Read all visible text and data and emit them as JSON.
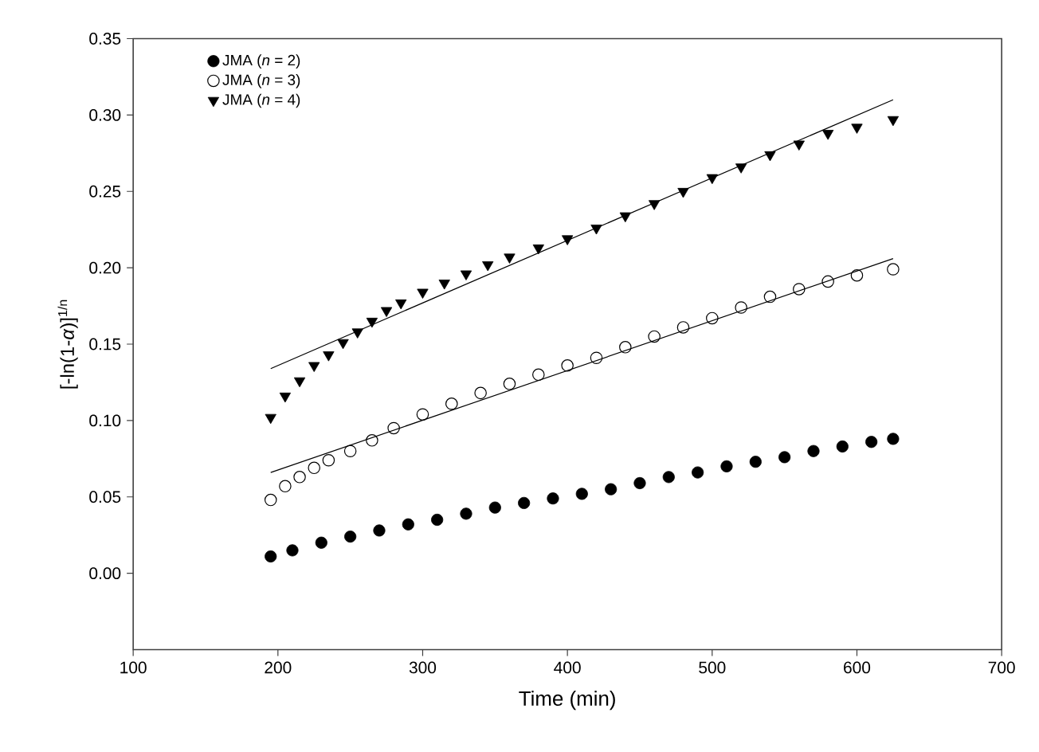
{
  "chart_data": {
    "type": "scatter",
    "xlabel": "Time (min)",
    "ylabel": "[-ln(1-*α*)]$^{1/n}$",
    "xlim": [
      100,
      700
    ],
    "xticks": [
      100,
      200,
      300,
      400,
      500,
      600,
      700
    ],
    "ylim": [
      -0.05,
      0.35
    ],
    "yticks": [
      {
        "value": 0,
        "label": "0.00"
      },
      {
        "value": 0.05,
        "label": "0.05"
      },
      {
        "value": 0.1,
        "label": "0.10"
      },
      {
        "value": 0.15,
        "label": "0.15"
      },
      {
        "value": 0.2,
        "label": "0.20"
      },
      {
        "value": 0.25,
        "label": "0.25"
      },
      {
        "value": 0.3,
        "label": "0.30"
      },
      {
        "value": 0.35,
        "label": "0.35"
      }
    ],
    "legend": "top left",
    "grid": false,
    "series": [
      {
        "name": "JMA (*n* = 2)",
        "color": "#000000",
        "marker": "circle",
        "x": [
          195,
          210,
          230,
          250,
          270,
          290,
          310,
          330,
          350,
          370,
          390,
          410,
          430,
          450,
          470,
          490,
          510,
          530,
          550,
          570,
          590,
          610,
          625
        ],
        "values": [
          0.011,
          0.015,
          0.02,
          0.024,
          0.028,
          0.032,
          0.035,
          0.039,
          0.043,
          0.046,
          0.049,
          0.052,
          0.055,
          0.059,
          0.063,
          0.066,
          0.07,
          0.073,
          0.076,
          0.08,
          0.083,
          0.086,
          0.088
        ]
      },
      {
        "name": "JMA (*n* = 3)",
        "color": "#000000",
        "marker": "circle-open",
        "x": [
          195,
          205,
          215,
          225,
          235,
          250,
          265,
          280,
          300,
          320,
          340,
          360,
          380,
          400,
          420,
          440,
          460,
          480,
          500,
          520,
          540,
          560,
          580,
          600,
          625
        ],
        "values": [
          0.048,
          0.057,
          0.063,
          0.069,
          0.074,
          0.08,
          0.087,
          0.095,
          0.104,
          0.111,
          0.118,
          0.124,
          0.13,
          0.136,
          0.141,
          0.148,
          0.155,
          0.161,
          0.167,
          0.174,
          0.181,
          0.186,
          0.191,
          0.195,
          0.199
        ]
      },
      {
        "name": "JMA (*n* = 4)",
        "color": "#000000",
        "marker": "triangle-down",
        "x": [
          195,
          205,
          215,
          225,
          235,
          245,
          255,
          265,
          275,
          285,
          300,
          315,
          330,
          345,
          360,
          380,
          400,
          420,
          440,
          460,
          480,
          500,
          520,
          540,
          560,
          580,
          600,
          625
        ],
        "values": [
          0.102,
          0.116,
          0.126,
          0.136,
          0.143,
          0.151,
          0.158,
          0.165,
          0.172,
          0.177,
          0.184,
          0.19,
          0.196,
          0.202,
          0.207,
          0.213,
          0.219,
          0.226,
          0.234,
          0.242,
          0.25,
          0.259,
          0.266,
          0.274,
          0.281,
          0.288,
          0.292,
          0.297
        ]
      },
      {
        "type": "line",
        "color": "#000000",
        "marker": "none",
        "line_style": "solid",
        "x": [
          195,
          625
        ],
        "values": [
          0.066,
          0.206
        ]
      },
      {
        "type": "line",
        "color": "#000000",
        "marker": "none",
        "line_style": "solid",
        "x": [
          195,
          625
        ],
        "values": [
          0.134,
          0.31
        ]
      }
    ]
  }
}
